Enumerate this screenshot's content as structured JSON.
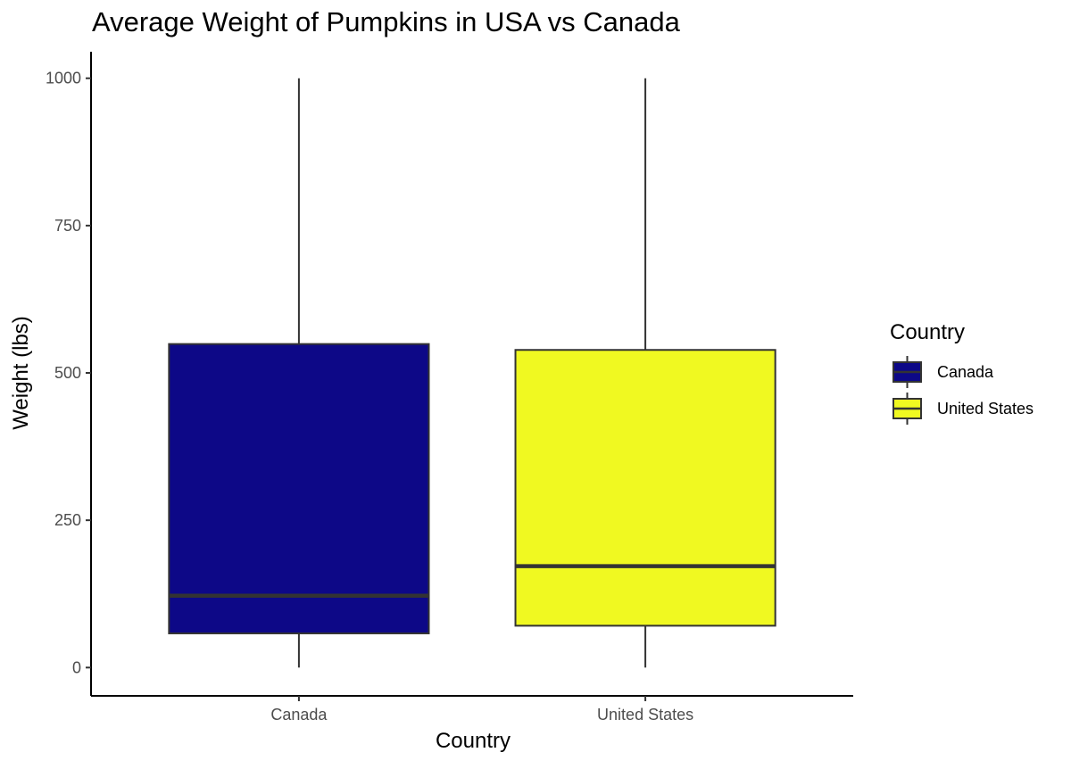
{
  "chart_data": {
    "type": "boxplot",
    "title": "Average Weight of Pumpkins in USA vs Canada",
    "xlabel": "Country",
    "ylabel": "Weight (lbs)",
    "ylim": [
      -48,
      1045
    ],
    "yticks": [
      0,
      250,
      500,
      750,
      1000
    ],
    "ytick_labels": [
      "0",
      "250",
      "500",
      "750",
      "1000"
    ],
    "grid": false,
    "legend": {
      "title": "Country",
      "position": "right"
    },
    "categories": [
      "Canada",
      "United States"
    ],
    "series": [
      {
        "name": "Canada",
        "color": "#0d0887",
        "min": 0,
        "q1": 58,
        "median": 122,
        "q3": 549,
        "max": 1000
      },
      {
        "name": "United States",
        "color": "#f0f921",
        "min": 0,
        "q1": 71,
        "median": 172,
        "q3": 539,
        "max": 1000
      }
    ]
  }
}
